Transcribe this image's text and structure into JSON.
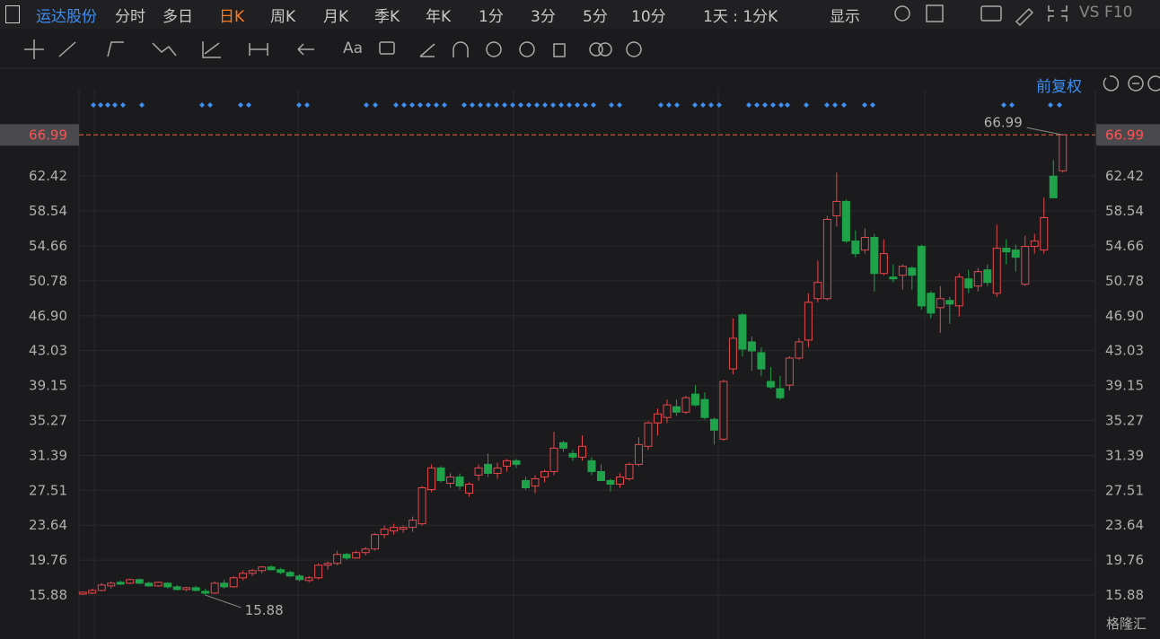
{
  "header": {
    "stock": "运达股份",
    "tabs": [
      "分时",
      "多日",
      "日K",
      "周K",
      "月K",
      "季K",
      "年K",
      "1分",
      "3分",
      "5分",
      "10分"
    ],
    "period": "1天 : 1分K",
    "display": "显示",
    "vs": "VS",
    "f10": "F10"
  },
  "toolbar": {
    "font": "Aa"
  },
  "adjust": "前复权",
  "watermark": "格隆汇",
  "chart_data": {
    "type": "candlestick",
    "open": [
      16.0,
      16.1,
      16.4,
      16.9,
      17.3,
      17.2,
      17.6,
      17.2,
      16.9,
      17.2,
      16.8,
      16.5,
      16.7,
      16.3,
      16.1,
      17.2,
      16.8,
      17.8,
      18.3,
      18.6,
      19.0,
      18.7,
      18.4,
      18.0,
      17.5,
      17.8,
      19.2,
      19.4,
      20.4,
      20.0,
      20.6,
      21.0,
      22.6,
      23.0,
      23.2,
      23.4,
      23.8,
      27.6,
      30.0,
      28.3,
      29.0,
      27.2,
      29.2,
      30.4,
      29.4,
      30.2,
      30.8,
      28.6,
      28.0,
      29.0,
      29.6,
      32.8,
      31.6,
      31.2,
      30.8,
      29.6,
      28.6,
      28.2,
      28.8,
      30.4,
      32.4,
      35.0,
      35.6,
      36.8,
      36.2,
      38.2,
      37.6,
      35.4,
      33.2,
      41.0,
      47.0,
      44.0,
      42.8,
      39.6,
      38.8,
      39.2,
      42.2,
      44.2,
      48.8,
      48.8,
      58.0,
      59.6,
      55.2,
      54.2,
      55.6,
      51.6,
      51.2,
      51.4,
      52.2,
      54.6,
      49.4,
      47.8,
      48.6,
      48.0,
      51.0,
      50.2,
      52.0,
      49.4,
      54.4,
      54.2,
      50.4,
      54.6,
      54.2,
      62.4,
      63.0
    ],
    "high": [
      16.3,
      16.6,
      17.2,
      17.4,
      17.5,
      17.7,
      17.7,
      17.4,
      17.4,
      17.3,
      17.0,
      16.8,
      16.9,
      16.6,
      17.4,
      17.6,
      18.0,
      18.6,
      18.8,
      19.1,
      19.2,
      18.9,
      18.6,
      18.2,
      18.0,
      19.4,
      19.6,
      20.8,
      20.6,
      20.8,
      21.2,
      22.8,
      23.6,
      23.8,
      23.6,
      24.6,
      28.0,
      30.4,
      30.2,
      29.4,
      29.4,
      28.4,
      30.4,
      31.6,
      30.6,
      31.0,
      31.0,
      29.0,
      29.2,
      29.8,
      34.0,
      33.0,
      32.0,
      33.6,
      31.2,
      30.4,
      28.8,
      29.4,
      30.6,
      33.4,
      35.2,
      36.6,
      37.6,
      37.6,
      38.0,
      39.2,
      38.4,
      35.6,
      39.8,
      46.6,
      47.2,
      44.6,
      43.4,
      41.2,
      40.2,
      42.4,
      44.4,
      49.4,
      53.0,
      58.0,
      62.8,
      59.8,
      56.4,
      56.6,
      56.0,
      55.4,
      52.6,
      52.6,
      52.4,
      54.8,
      49.6,
      50.2,
      49.0,
      51.6,
      52.0,
      52.2,
      52.6,
      57.0,
      55.4,
      54.8,
      55.8,
      56.0,
      60.0,
      64.2,
      66.99
    ],
    "low": [
      15.9,
      16.0,
      16.3,
      16.6,
      17.0,
      17.1,
      17.1,
      16.8,
      16.8,
      16.6,
      16.4,
      16.3,
      16.3,
      15.88,
      16.0,
      16.6,
      16.7,
      17.5,
      18.0,
      18.3,
      18.6,
      18.2,
      17.9,
      17.4,
      17.3,
      17.6,
      18.7,
      19.2,
      19.8,
      19.9,
      20.3,
      20.8,
      22.2,
      22.6,
      22.8,
      22.9,
      23.6,
      27.3,
      28.4,
      27.8,
      27.6,
      26.8,
      28.6,
      29.0,
      28.8,
      29.6,
      30.0,
      27.6,
      27.2,
      28.4,
      29.2,
      31.8,
      30.8,
      30.8,
      29.2,
      28.6,
      27.4,
      27.8,
      28.6,
      30.2,
      32.0,
      33.6,
      35.0,
      35.8,
      36.0,
      36.8,
      35.4,
      32.6,
      33.0,
      40.4,
      42.4,
      40.8,
      40.2,
      38.8,
      37.6,
      38.6,
      42.0,
      43.4,
      48.4,
      48.6,
      56.8,
      55.0,
      53.4,
      53.8,
      49.6,
      51.4,
      50.6,
      49.8,
      49.8,
      47.6,
      46.6,
      45.0,
      46.0,
      46.8,
      49.4,
      49.6,
      50.2,
      49.0,
      52.6,
      51.8,
      50.2,
      53.8,
      53.8,
      60.0,
      62.8
    ],
    "close": [
      16.2,
      16.4,
      17.0,
      17.2,
      17.1,
      17.6,
      17.2,
      16.9,
      17.3,
      16.8,
      16.5,
      16.7,
      16.4,
      16.1,
      17.2,
      16.8,
      17.8,
      18.3,
      18.6,
      19.0,
      18.7,
      18.4,
      18.0,
      17.6,
      17.8,
      19.2,
      19.4,
      20.4,
      20.0,
      20.6,
      21.0,
      22.6,
      23.2,
      23.4,
      23.4,
      24.2,
      27.8,
      30.0,
      28.6,
      29.0,
      28.0,
      28.2,
      30.0,
      29.4,
      30.0,
      30.8,
      30.4,
      27.8,
      28.8,
      29.6,
      32.2,
      32.2,
      31.2,
      32.4,
      29.6,
      28.6,
      28.2,
      29.0,
      30.4,
      32.6,
      35.0,
      36.0,
      37.0,
      36.2,
      37.8,
      37.0,
      35.6,
      34.2,
      39.6,
      44.4,
      43.2,
      43.0,
      41.0,
      39.0,
      37.8,
      42.2,
      44.0,
      48.4,
      50.6,
      57.6,
      59.6,
      55.2,
      53.8,
      55.6,
      51.6,
      53.8,
      51.0,
      52.4,
      51.4,
      48.0,
      47.2,
      48.8,
      48.2,
      51.2,
      50.0,
      51.8,
      50.6,
      54.4,
      54.0,
      53.4,
      54.6,
      55.2,
      57.8,
      60.0,
      66.99
    ],
    "up_color": "#e5484d",
    "down_color": "#1fa34a",
    "ylim": [
      12.2,
      72.0
    ],
    "yticks": [
      15.88,
      19.76,
      23.64,
      27.51,
      31.39,
      35.27,
      39.15,
      43.03,
      {
        "value": 46.9,
        "label": "46.90"
      },
      50.78,
      54.66,
      58.54,
      62.42
    ],
    "last_price": 66.99,
    "max_label": 66.99,
    "min_label": 15.88,
    "grid": true
  }
}
